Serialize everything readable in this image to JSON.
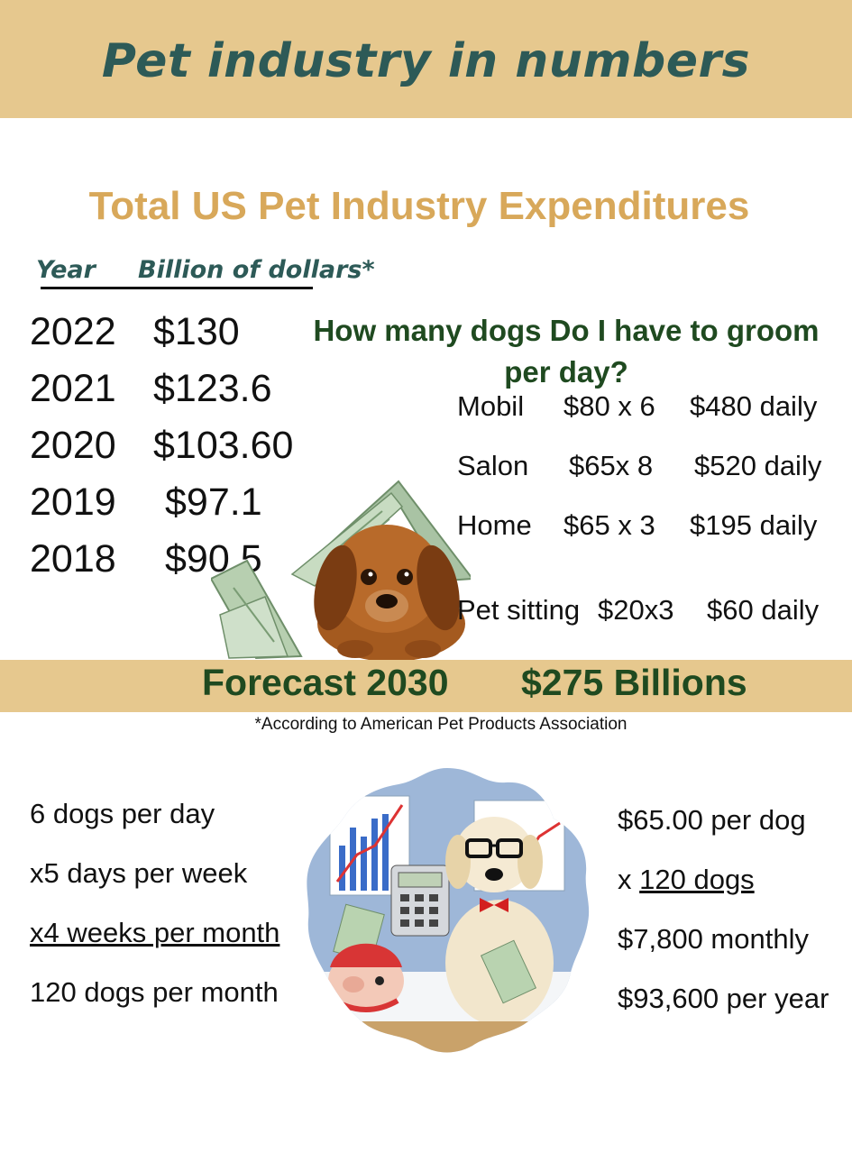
{
  "header": {
    "title": "Pet industry in numbers",
    "band_color": "#e6c88e",
    "title_color": "#2d5a57"
  },
  "expenditures": {
    "title": "Total  US Pet Industry Expenditures",
    "title_color": "#d8a85a",
    "col_year": "Year",
    "col_amount": "Billion of dollars*",
    "rows": [
      {
        "year": "2022",
        "amount": "$130"
      },
      {
        "year": "2021",
        "amount": "$123.6"
      },
      {
        "year": "2020",
        "amount": "$103.60"
      },
      {
        "year": "2019",
        "amount": "$97.1"
      },
      {
        "year": "2018",
        "amount": "$90.5"
      }
    ]
  },
  "grooming": {
    "question": "How many dogs Do I have to groom per day?",
    "question_color": "#1f4a20",
    "services": [
      {
        "name": "Mobil",
        "rate": "$80 x 6",
        "total": "$480 daily"
      },
      {
        "name": "Salon",
        "rate": "$65x 8",
        "total": "$520 daily"
      },
      {
        "name": "Home",
        "rate": "$65 x 3",
        "total": "$195 daily"
      },
      {
        "name": "Pet sitting",
        "rate": "$20x3",
        "total": "$60 daily"
      }
    ]
  },
  "forecast": {
    "label": "Forecast 2030",
    "value": "$275 Billions",
    "note": "*According to American Pet Products Association"
  },
  "calculation_left": {
    "lines": [
      "6 dogs per day",
      "x5 days per week",
      "x4 weeks per month",
      "120 dogs per month"
    ]
  },
  "calculation_right": {
    "lines": [
      "$65.00 per dog",
      "x 120 dogs ",
      "$7,800 monthly",
      "$93,600 per year"
    ]
  },
  "illustrations": {
    "top": "puppy-under-money-icon",
    "bottom": "dog-with-calculator-icon"
  }
}
